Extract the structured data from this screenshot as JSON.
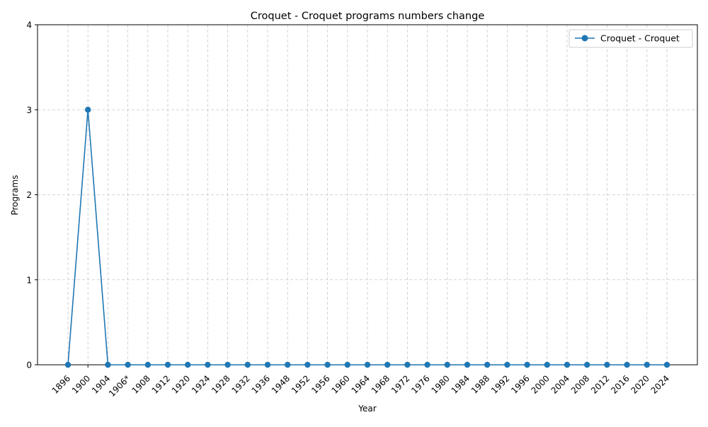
{
  "chart_data": {
    "type": "line",
    "title": "Croquet - Croquet programs numbers change",
    "xlabel": "Year",
    "ylabel": "Programs",
    "categories": [
      "1896",
      "1900",
      "1904",
      "1906*",
      "1908",
      "1912",
      "1920",
      "1924",
      "1928",
      "1932",
      "1936",
      "1948",
      "1952",
      "1956",
      "1960",
      "1964",
      "1968",
      "1972",
      "1976",
      "1980",
      "1984",
      "1988",
      "1992",
      "1996",
      "2000",
      "2004",
      "2008",
      "2012",
      "2016",
      "2020",
      "2024"
    ],
    "series": [
      {
        "name": "Croquet - Croquet",
        "color": "#1f77b4",
        "marker": "circle",
        "values": [
          0,
          3,
          0,
          0,
          0,
          0,
          0,
          0,
          0,
          0,
          0,
          0,
          0,
          0,
          0,
          0,
          0,
          0,
          0,
          0,
          0,
          0,
          0,
          0,
          0,
          0,
          0,
          0,
          0,
          0,
          0
        ]
      }
    ],
    "ylim": [
      0,
      4
    ],
    "yticks": [
      0,
      1,
      2,
      3,
      4
    ],
    "grid": true,
    "legend_position": "top-right"
  }
}
